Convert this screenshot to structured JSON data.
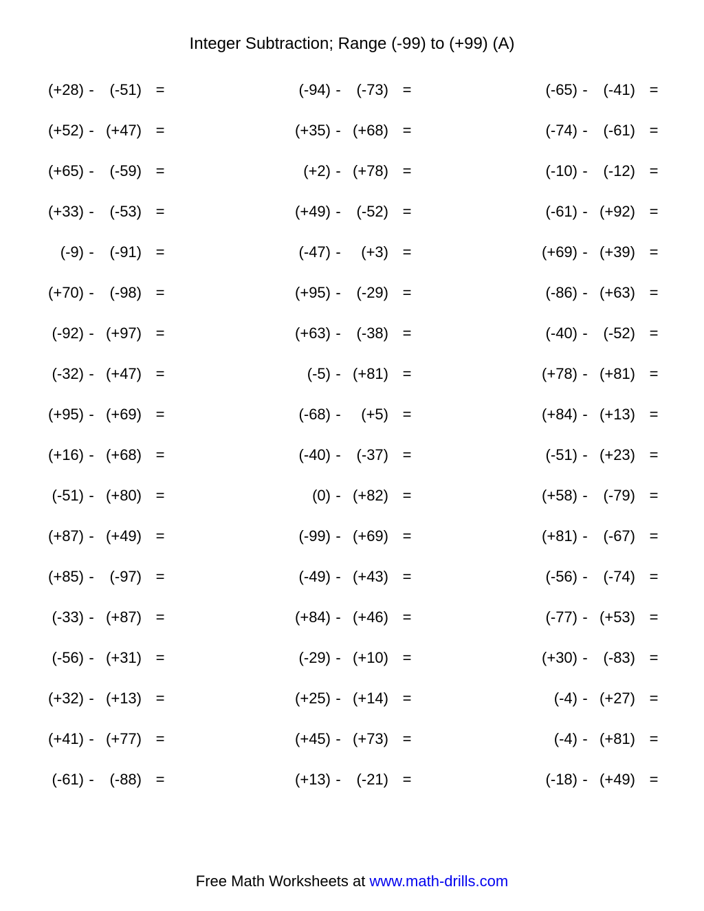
{
  "title": "Integer Subtraction; Range (-99) to (+99) (A)",
  "footer_text": "Free Math Worksheets at ",
  "footer_link": "www.math-drills.com",
  "minus": "-",
  "equals": "=",
  "columns": 3,
  "rows_count": 18,
  "text_color": "#000000",
  "link_color": "#0000ee",
  "background_color": "#ffffff",
  "font_size_body": 22,
  "font_size_title": 24,
  "problems": [
    [
      {
        "a": "(+28)",
        "b": "(-51)"
      },
      {
        "a": "(-94)",
        "b": "(-73)"
      },
      {
        "a": "(-65)",
        "b": "(-41)"
      }
    ],
    [
      {
        "a": "(+52)",
        "b": "(+47)"
      },
      {
        "a": "(+35)",
        "b": "(+68)"
      },
      {
        "a": "(-74)",
        "b": "(-61)"
      }
    ],
    [
      {
        "a": "(+65)",
        "b": "(-59)"
      },
      {
        "a": "(+2)",
        "b": "(+78)"
      },
      {
        "a": "(-10)",
        "b": "(-12)"
      }
    ],
    [
      {
        "a": "(+33)",
        "b": "(-53)"
      },
      {
        "a": "(+49)",
        "b": "(-52)"
      },
      {
        "a": "(-61)",
        "b": "(+92)"
      }
    ],
    [
      {
        "a": "(-9)",
        "b": "(-91)"
      },
      {
        "a": "(-47)",
        "b": "(+3)"
      },
      {
        "a": "(+69)",
        "b": "(+39)"
      }
    ],
    [
      {
        "a": "(+70)",
        "b": "(-98)"
      },
      {
        "a": "(+95)",
        "b": "(-29)"
      },
      {
        "a": "(-86)",
        "b": "(+63)"
      }
    ],
    [
      {
        "a": "(-92)",
        "b": "(+97)"
      },
      {
        "a": "(+63)",
        "b": "(-38)"
      },
      {
        "a": "(-40)",
        "b": "(-52)"
      }
    ],
    [
      {
        "a": "(-32)",
        "b": "(+47)"
      },
      {
        "a": "(-5)",
        "b": "(+81)"
      },
      {
        "a": "(+78)",
        "b": "(+81)"
      }
    ],
    [
      {
        "a": "(+95)",
        "b": "(+69)"
      },
      {
        "a": "(-68)",
        "b": "(+5)"
      },
      {
        "a": "(+84)",
        "b": "(+13)"
      }
    ],
    [
      {
        "a": "(+16)",
        "b": "(+68)"
      },
      {
        "a": "(-40)",
        "b": "(-37)"
      },
      {
        "a": "(-51)",
        "b": "(+23)"
      }
    ],
    [
      {
        "a": "(-51)",
        "b": "(+80)"
      },
      {
        "a": "(0)",
        "b": "(+82)"
      },
      {
        "a": "(+58)",
        "b": "(-79)"
      }
    ],
    [
      {
        "a": "(+87)",
        "b": "(+49)"
      },
      {
        "a": "(-99)",
        "b": "(+69)"
      },
      {
        "a": "(+81)",
        "b": "(-67)"
      }
    ],
    [
      {
        "a": "(+85)",
        "b": "(-97)"
      },
      {
        "a": "(-49)",
        "b": "(+43)"
      },
      {
        "a": "(-56)",
        "b": "(-74)"
      }
    ],
    [
      {
        "a": "(-33)",
        "b": "(+87)"
      },
      {
        "a": "(+84)",
        "b": "(+46)"
      },
      {
        "a": "(-77)",
        "b": "(+53)"
      }
    ],
    [
      {
        "a": "(-56)",
        "b": "(+31)"
      },
      {
        "a": "(-29)",
        "b": "(+10)"
      },
      {
        "a": "(+30)",
        "b": "(-83)"
      }
    ],
    [
      {
        "a": "(+32)",
        "b": "(+13)"
      },
      {
        "a": "(+25)",
        "b": "(+14)"
      },
      {
        "a": "(-4)",
        "b": "(+27)"
      }
    ],
    [
      {
        "a": "(+41)",
        "b": "(+77)"
      },
      {
        "a": "(+45)",
        "b": "(+73)"
      },
      {
        "a": "(-4)",
        "b": "(+81)"
      }
    ],
    [
      {
        "a": "(-61)",
        "b": "(-88)"
      },
      {
        "a": "(+13)",
        "b": "(-21)"
      },
      {
        "a": "(-18)",
        "b": "(+49)"
      }
    ]
  ]
}
